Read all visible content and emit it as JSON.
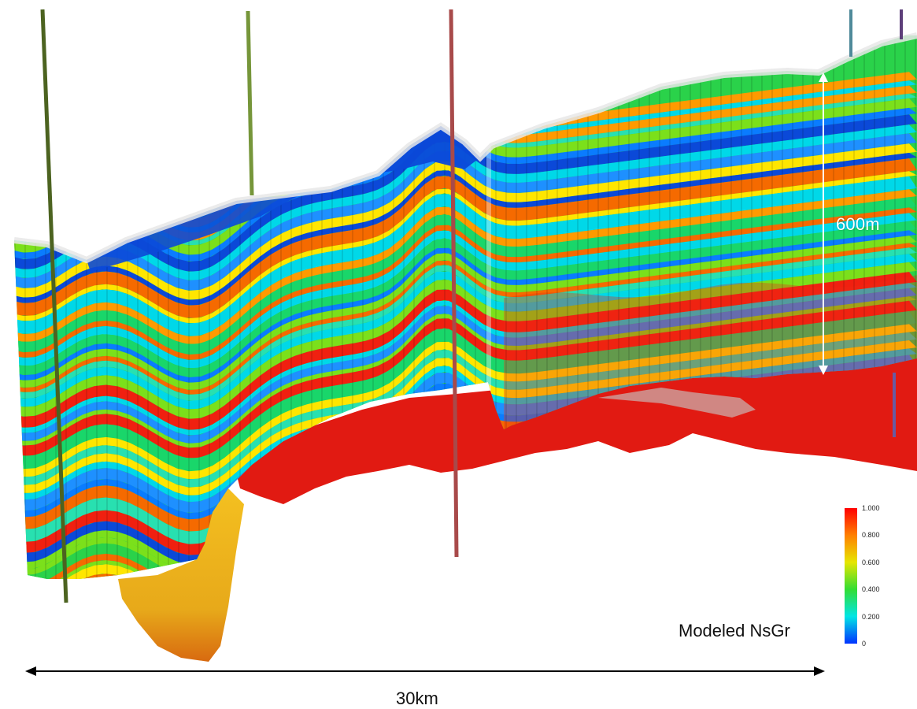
{
  "annotations": {
    "thickness_label": "600m",
    "length_label": "30km"
  },
  "colorbar": {
    "title": "Modeled NsGr",
    "ticks": [
      "1.000",
      "0.800",
      "0.600",
      "0.400",
      "0.200",
      "0"
    ],
    "colors": [
      "#ff0000",
      "#ff8000",
      "#e6e600",
      "#33dd33",
      "#00e5e5",
      "#0033ff"
    ]
  },
  "wells": {
    "colors": [
      "#4c6320",
      "#76963a",
      "#a84a4a",
      "#4f8a9a",
      "#5d3f7a"
    ]
  }
}
